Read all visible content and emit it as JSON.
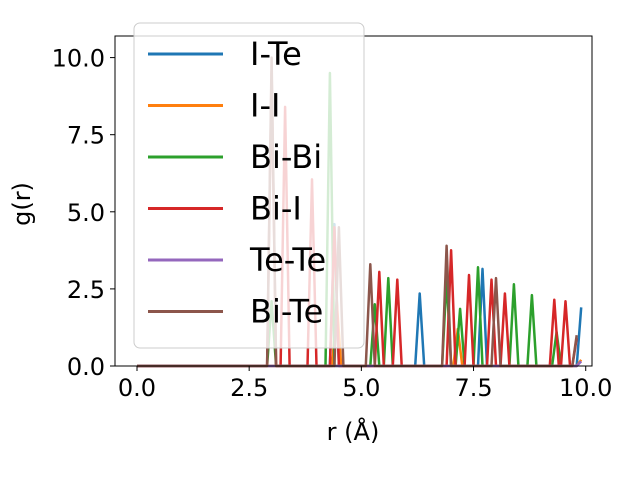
{
  "chart_data": {
    "type": "line",
    "xlabel": "r (Å)",
    "ylabel": "g(r)",
    "xlim": [
      -0.49,
      10.14
    ],
    "ylim": [
      0,
      10.7
    ],
    "xticks": [
      "0.0",
      "2.5",
      "5.0",
      "7.5",
      "10.0"
    ],
    "yticks": [
      "0.0",
      "2.5",
      "5.0",
      "7.5",
      "10.0"
    ],
    "grid": false,
    "legend_position": "upper-left",
    "series": [
      {
        "name": "I-Te",
        "color": "#1f77b4",
        "points": [
          [
            0,
            0
          ],
          [
            4.3,
            0
          ],
          [
            4.4,
            4.6
          ],
          [
            4.5,
            0
          ],
          [
            6.2,
            0
          ],
          [
            6.3,
            2.35
          ],
          [
            6.4,
            0
          ],
          [
            7.6,
            0
          ],
          [
            7.7,
            3.15
          ],
          [
            7.8,
            0
          ],
          [
            9.8,
            0
          ],
          [
            9.9,
            1.9
          ]
        ]
      },
      {
        "name": "I-I",
        "color": "#ff7f0e",
        "points": [
          [
            0,
            0
          ],
          [
            4.35,
            0
          ],
          [
            4.45,
            2.1
          ],
          [
            4.55,
            0
          ],
          [
            7.05,
            0
          ],
          [
            7.15,
            1.2
          ],
          [
            7.25,
            0
          ],
          [
            9.8,
            0
          ],
          [
            9.9,
            0.2
          ]
        ]
      },
      {
        "name": "Bi-Bi",
        "color": "#2ca02c",
        "points": [
          [
            0,
            0
          ],
          [
            2.9,
            0
          ],
          [
            3.0,
            2.1
          ],
          [
            3.1,
            0
          ],
          [
            4.2,
            0
          ],
          [
            4.3,
            9.5
          ],
          [
            4.4,
            0
          ],
          [
            5.2,
            0
          ],
          [
            5.3,
            2.0
          ],
          [
            5.4,
            0
          ],
          [
            5.5,
            0
          ],
          [
            5.6,
            2.85
          ],
          [
            5.7,
            0
          ],
          [
            6.8,
            0
          ],
          [
            6.9,
            2.85
          ],
          [
            7.0,
            0
          ],
          [
            7.1,
            0
          ],
          [
            7.2,
            1.85
          ],
          [
            7.3,
            0
          ],
          [
            7.5,
            0
          ],
          [
            7.6,
            3.2
          ],
          [
            7.7,
            0
          ],
          [
            8.3,
            0
          ],
          [
            8.4,
            2.65
          ],
          [
            8.5,
            0
          ],
          [
            8.7,
            0
          ],
          [
            8.8,
            2.3
          ],
          [
            8.9,
            0
          ],
          [
            9.25,
            0
          ],
          [
            9.35,
            1.1
          ],
          [
            9.45,
            0
          ]
        ]
      },
      {
        "name": "Bi-I",
        "color": "#d62728",
        "points": [
          [
            0,
            0
          ],
          [
            2.9,
            0
          ],
          [
            3.0,
            9.55
          ],
          [
            3.1,
            0
          ],
          [
            3.2,
            0
          ],
          [
            3.3,
            8.4
          ],
          [
            3.4,
            0
          ],
          [
            3.8,
            0
          ],
          [
            3.9,
            6.05
          ],
          [
            4.0,
            0
          ],
          [
            4.3,
            0
          ],
          [
            4.4,
            4.5
          ],
          [
            4.5,
            0
          ],
          [
            5.3,
            0
          ],
          [
            5.4,
            3.05
          ],
          [
            5.5,
            0
          ],
          [
            5.7,
            0
          ],
          [
            5.8,
            2.8
          ],
          [
            5.9,
            0
          ],
          [
            6.9,
            0
          ],
          [
            7.0,
            3.75
          ],
          [
            7.1,
            0
          ],
          [
            7.3,
            0
          ],
          [
            7.4,
            2.95
          ],
          [
            7.5,
            0
          ],
          [
            7.8,
            0
          ],
          [
            7.9,
            2.8
          ],
          [
            8.0,
            0
          ],
          [
            8.1,
            0
          ],
          [
            8.2,
            2.35
          ],
          [
            8.3,
            0
          ],
          [
            9.2,
            0
          ],
          [
            9.3,
            2.15
          ],
          [
            9.4,
            0
          ],
          [
            9.45,
            0
          ],
          [
            9.55,
            2.1
          ],
          [
            9.65,
            0
          ],
          [
            9.7,
            0
          ],
          [
            9.8,
            0.9
          ]
        ]
      },
      {
        "name": "Te-Te",
        "color": "#9467bd",
        "points": [
          [
            0,
            0
          ],
          [
            9.8,
            0
          ],
          [
            9.9,
            0.15
          ]
        ]
      },
      {
        "name": "Bi-Te",
        "color": "#8c564b",
        "points": [
          [
            0,
            0
          ],
          [
            2.9,
            0
          ],
          [
            3.0,
            10.0
          ],
          [
            3.1,
            0
          ],
          [
            4.4,
            0
          ],
          [
            4.5,
            4.5
          ],
          [
            4.6,
            0
          ],
          [
            5.1,
            0
          ],
          [
            5.2,
            3.3
          ],
          [
            5.3,
            0
          ],
          [
            6.8,
            0
          ],
          [
            6.9,
            3.9
          ],
          [
            7.0,
            0
          ],
          [
            7.9,
            0
          ],
          [
            8.0,
            2.85
          ],
          [
            8.1,
            0
          ],
          [
            9.7,
            0
          ],
          [
            9.8,
            1.0
          ]
        ]
      }
    ]
  }
}
